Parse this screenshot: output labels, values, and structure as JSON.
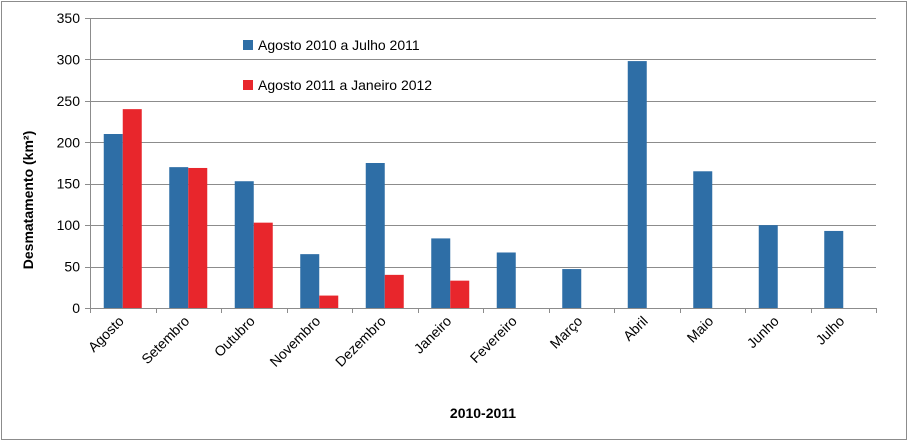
{
  "chart_data": {
    "type": "bar",
    "categories": [
      "Agosto",
      "Setembro",
      "Outubro",
      "Novembro",
      "Dezembro",
      "Janeiro",
      "Fevereiro",
      "Março",
      "Abril",
      "Maio",
      "Junho",
      "Julho"
    ],
    "series": [
      {
        "name": "Agosto 2010 a Julho 2011",
        "color": "#2e6ea6",
        "values": [
          210,
          170,
          153,
          65,
          175,
          84,
          67,
          47,
          298,
          165,
          100,
          93
        ]
      },
      {
        "name": "Agosto 2011 a Janeiro 2012",
        "color": "#e8262c",
        "values": [
          240,
          169,
          103,
          15,
          40,
          33,
          null,
          null,
          null,
          null,
          null,
          null
        ]
      }
    ],
    "title": "",
    "xlabel": "2010-2011",
    "ylabel": "Desmatamento (km²)",
    "ylim": [
      0,
      350
    ],
    "yticks": [
      0,
      50,
      100,
      150,
      200,
      250,
      300,
      350
    ],
    "grid": true,
    "legend_position": "top-left"
  }
}
